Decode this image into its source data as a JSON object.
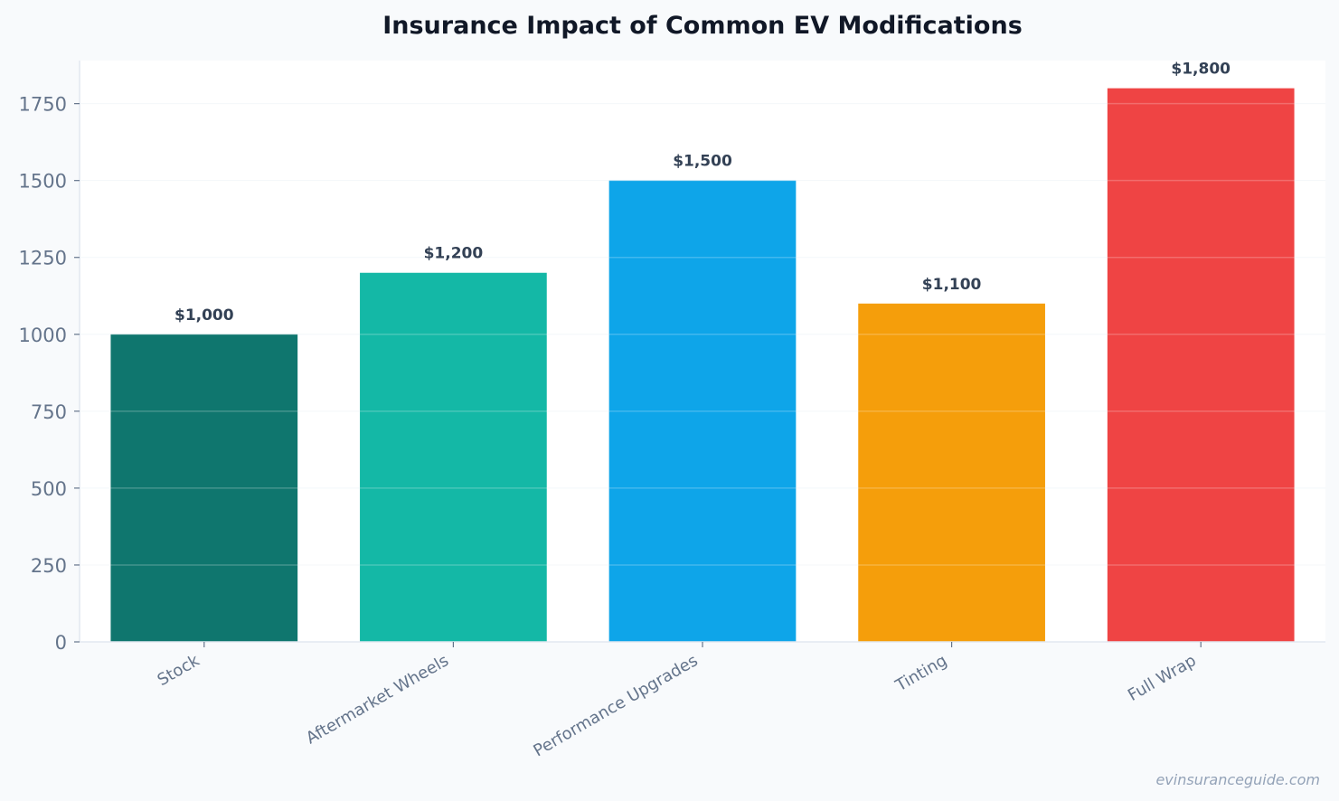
{
  "chart_data": {
    "type": "bar",
    "title": "Insurance Impact of Common EV Modifications",
    "xlabel": "",
    "ylabel": "",
    "categories": [
      "Stock",
      "Aftermarket Wheels",
      "Performance Upgrades",
      "Tinting",
      "Full Wrap"
    ],
    "values": [
      1000,
      1200,
      1500,
      1100,
      1800
    ],
    "data_labels": [
      "$1,000",
      "$1,200",
      "$1,500",
      "$1,100",
      "$1,800"
    ],
    "colors": [
      "#0f766e",
      "#14b8a6",
      "#0ea5e9",
      "#f59e0b",
      "#ef4444"
    ],
    "ylim": [
      0,
      1890
    ],
    "yticks": [
      0,
      250,
      500,
      750,
      1000,
      1250,
      1500,
      1750
    ],
    "grid": true,
    "legend": "none"
  },
  "watermark": "evinsuranceguide.com"
}
